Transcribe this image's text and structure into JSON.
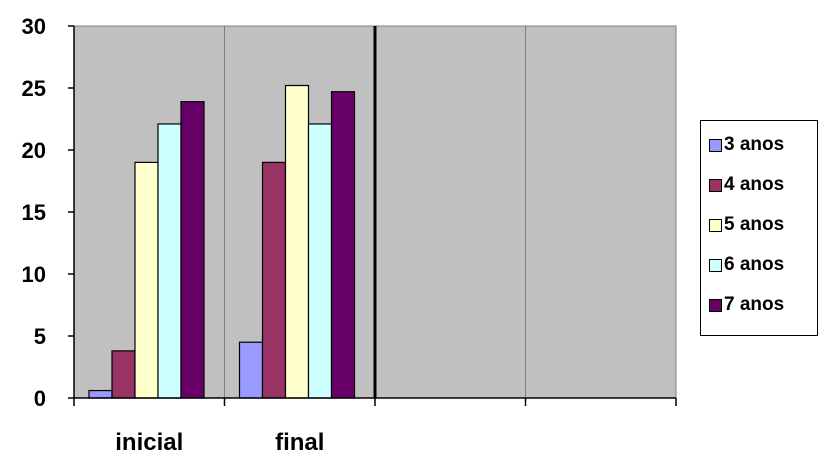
{
  "chart_data": {
    "type": "bar",
    "categories": [
      "inicial",
      "final",
      "",
      ""
    ],
    "series": [
      {
        "name": "3 anos",
        "color": "#9999ff",
        "values": [
          0.6,
          4.5,
          null,
          null
        ]
      },
      {
        "name": "4 anos",
        "color": "#993366",
        "values": [
          3.8,
          19.0,
          null,
          null
        ]
      },
      {
        "name": "5 anos",
        "color": "#ffffcc",
        "values": [
          19.0,
          25.2,
          null,
          null
        ]
      },
      {
        "name": "6 anos",
        "color": "#ccffff",
        "values": [
          22.1,
          22.1,
          null,
          null
        ]
      },
      {
        "name": "7 anos",
        "color": "#660066",
        "values": [
          23.9,
          24.7,
          null,
          null
        ]
      }
    ],
    "ylim": [
      0,
      30
    ],
    "yticks": [
      "0",
      "5",
      "10",
      "15",
      "20",
      "25",
      "30"
    ],
    "grid": false,
    "plot_background": "#c0c0c0",
    "legend_position": "right"
  }
}
